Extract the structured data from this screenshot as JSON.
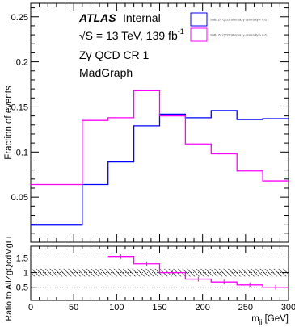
{
  "chart_data": {
    "type": "line",
    "annotations": {
      "atlas": "ATLAS",
      "internal": "Internal",
      "energy_label": "√S = 13 TeV, 139 fb",
      "energy_sup": "-1",
      "region": "Zγ QCD CR 1",
      "generator": "MadGraph"
    },
    "main": {
      "ylabel": "Fraction of events",
      "xlim": [
        0,
        300
      ],
      "ylim": [
        0,
        0.265
      ],
      "yticks": [
        0.05,
        0.1,
        0.15,
        0.2,
        0.25
      ],
      "ytick_labels": [
        "0.05",
        "0.1",
        "0.15",
        "0.2",
        "0.25"
      ],
      "bin_edges": [
        0,
        60,
        90,
        120,
        150,
        180,
        210,
        240,
        270,
        300
      ],
      "series": [
        {
          "name": "SnB, Zγ QCD Sherpa, γ centrality < 0.6",
          "color": "#0000ff",
          "values": [
            0.019,
            0.064,
            0.089,
            0.129,
            0.142,
            0.138,
            0.146,
            0.136,
            0.137
          ]
        },
        {
          "name": "SnB, Zγ QCD Sherpa, γ centrality > 0.6",
          "color": "#ff00ff",
          "values": [
            0.064,
            0.135,
            0.138,
            0.168,
            0.14,
            0.109,
            0.098,
            0.079,
            0.068
          ]
        }
      ]
    },
    "ratio": {
      "ylabel": "Ratio to AllZgQcdMgLı",
      "xlabel": "m",
      "xlabel_sub": "jj",
      "xlabel_unit": " [GeV]",
      "ylim": [
        0.05,
        1.9
      ],
      "yticks": [
        0.5,
        1,
        1.5
      ],
      "ytick_labels": [
        "0.5",
        "1",
        "1.5"
      ],
      "xticks": [
        0,
        50,
        100,
        150,
        200,
        250,
        300
      ],
      "xtick_labels": [
        "0",
        "50",
        "100",
        "150",
        "200",
        "250",
        "300"
      ],
      "hatch_band": [
        0.87,
        1.13
      ],
      "bin_edges": [
        90,
        120,
        150,
        180,
        210,
        240,
        270,
        300
      ],
      "values": [
        1.55,
        1.3,
        1.0,
        0.78,
        0.68,
        0.58,
        0.5
      ],
      "color": "#ff00ff"
    }
  }
}
